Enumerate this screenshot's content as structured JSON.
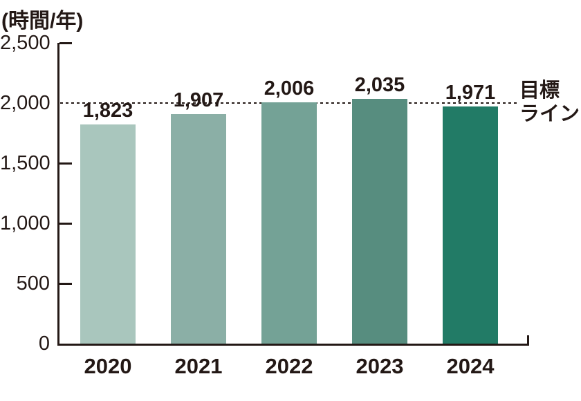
{
  "chart_data": {
    "type": "bar",
    "ylabel": "(時間/年)",
    "categories": [
      "2020",
      "2021",
      "2022",
      "2023",
      "2024"
    ],
    "values": [
      1823,
      1907,
      2006,
      2035,
      1971
    ],
    "value_labels": [
      "1,823",
      "1,907",
      "2,006",
      "2,035",
      "1,971"
    ],
    "bar_colors": [
      "#a9c6bd",
      "#8bafa6",
      "#74a296",
      "#578d7f",
      "#227b66"
    ],
    "ylim": [
      0,
      2500
    ],
    "yticks": [
      0,
      500,
      1000,
      1500,
      2000,
      2500
    ],
    "ytick_labels": [
      "0",
      "500",
      "1,000",
      "1,500",
      "2,000",
      "2,500"
    ],
    "target_line": {
      "value": 2000,
      "label": "目標ライン",
      "label_lines": [
        "目標",
        "ライン"
      ],
      "style": "dotted"
    },
    "grid": false,
    "legend": "none",
    "axis_color": "#231815",
    "text_color": "#231815",
    "background_color": "#ffffff"
  }
}
